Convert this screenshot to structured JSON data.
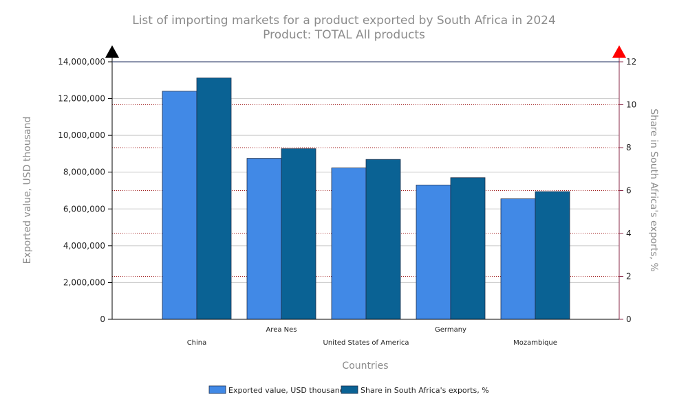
{
  "chart_data": {
    "type": "bar",
    "title": "List of importing markets for a product exported by South Africa in 2024",
    "subtitle": "Product: TOTAL All products",
    "xlabel": "Countries",
    "ylabel": "Exported value, USD thousand",
    "y2label": "Share in South Africa's exports, %",
    "categories": [
      "China",
      "Area Nes",
      "United States of America",
      "Germany",
      "Mozambique"
    ],
    "series": [
      {
        "name": "Exported value, USD thousand",
        "axis": "left",
        "color": "#4189e6",
        "values": [
          12400000,
          8750000,
          8230000,
          7300000,
          6550000
        ]
      },
      {
        "name": "Share in South Africa's exports, %",
        "axis": "right",
        "color": "#0a6294",
        "values": [
          11.25,
          7.95,
          7.45,
          6.6,
          5.95
        ]
      }
    ],
    "ylim": [
      0,
      14000000
    ],
    "y2lim": [
      0,
      12
    ],
    "yticks": [
      "0",
      "2,000,000",
      "4,000,000",
      "6,000,000",
      "8,000,000",
      "10,000,000",
      "12,000,000",
      "14,000,000"
    ],
    "y2ticks": [
      "0",
      "2",
      "4",
      "6",
      "8",
      "10",
      "12"
    ],
    "grid": true,
    "legend_position": "bottom",
    "axis_arrow_colors": {
      "left": "#000000",
      "right": "#ff0000"
    }
  }
}
